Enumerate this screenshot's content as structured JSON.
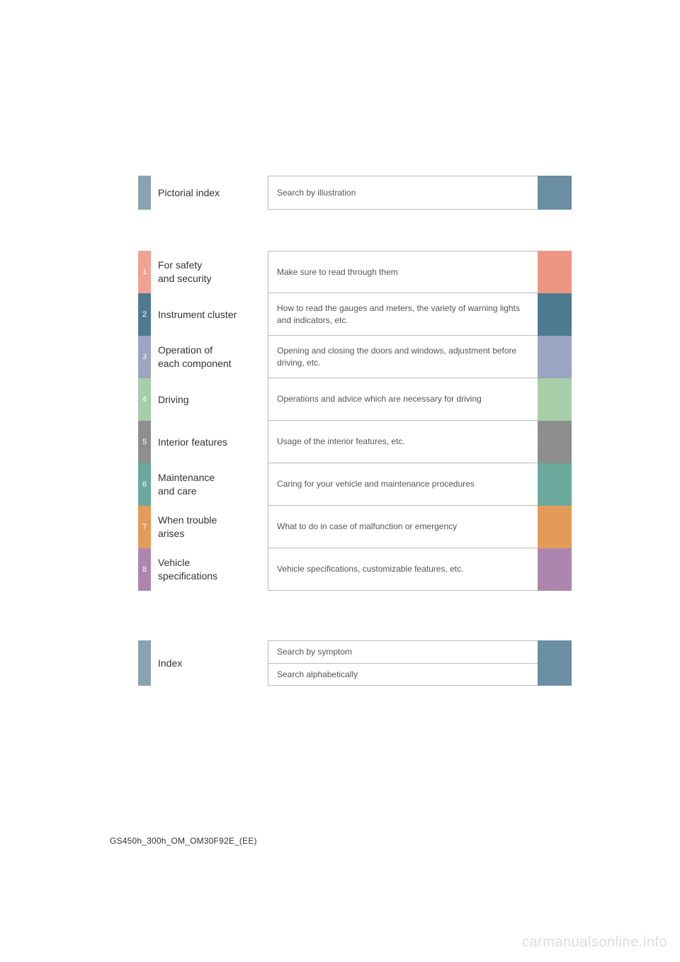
{
  "pictorial": {
    "title": "Pictorial index",
    "desc": "Search by illustration",
    "num_color": "#8aa3ae",
    "swatch_color": "#6a8ea2"
  },
  "chapters": [
    {
      "num": "1",
      "title": "For safety\nand security",
      "desc": "Make sure to read through them",
      "num_color": "#f0a392",
      "swatch_color": "#ed9684"
    },
    {
      "num": "2",
      "title": "Instrument cluster",
      "desc": "How to read the gauges and meters, the variety of warning lights and indicators, etc.",
      "num_color": "#4f7b92",
      "swatch_color": "#4f7b92"
    },
    {
      "num": "3",
      "title": "Operation of\neach component",
      "desc": "Opening and closing the doors and windows, adjustment before driving, etc.",
      "num_color": "#9ba4c1",
      "swatch_color": "#9ba4c1"
    },
    {
      "num": "4",
      "title": "Driving",
      "desc": "Operations and advice which are necessary for driving",
      "num_color": "#a7cda9",
      "swatch_color": "#a7cda9"
    },
    {
      "num": "5",
      "title": "Interior features",
      "desc": "Usage of the interior features, etc.",
      "num_color": "#8e8e8e",
      "swatch_color": "#8e8e8e"
    },
    {
      "num": "6",
      "title": "Maintenance\nand care",
      "desc": "Caring for your vehicle and maintenance procedures",
      "num_color": "#6aa99b",
      "swatch_color": "#6aa99b"
    },
    {
      "num": "7",
      "title": "When trouble\narises",
      "desc": "What to do in case of malfunction or emergency",
      "num_color": "#e39b59",
      "swatch_color": "#e39b59"
    },
    {
      "num": "8",
      "title": "Vehicle\nspecifications",
      "desc": "Vehicle specifications, customizable features, etc.",
      "num_color": "#ad86b0",
      "swatch_color": "#ad86b0"
    }
  ],
  "index": {
    "title": "Index",
    "num_color": "#8aa3ae",
    "items": [
      {
        "desc": "Search by symptom",
        "swatch_color": "#6a8ea2"
      },
      {
        "desc": "Search alphabetically",
        "swatch_color": "#6a8ea2"
      }
    ]
  },
  "footer": "GS450h_300h_OM_OM30F92E_(EE)",
  "watermark": "carmanualsonline.info"
}
